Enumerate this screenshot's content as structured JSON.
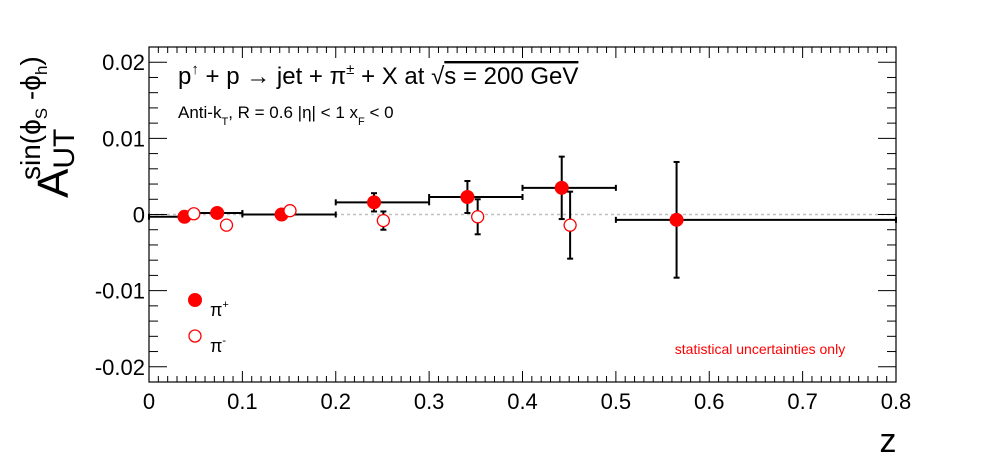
{
  "chart_data": {
    "type": "scatter",
    "title_main": "p↑ + p → jet + π± + X at √s = 200 GeV",
    "title_parts": {
      "p1": "p",
      "arrow_up": "↑",
      "mid": " + p ",
      "rarrow": "→",
      "jet": " jet + ",
      "pi": "π",
      "pm": "±",
      "tail": " + X at ",
      "sqrt": "√",
      "energy": "s = 200 GeV"
    },
    "subtitle_parts": {
      "antikt": "Anti-k",
      "T": "T",
      "rpar": ", R = 0.6   |η| < 1   x",
      "F": "F",
      "lt": " < 0"
    },
    "ylabel": {
      "A": "A",
      "UT": "UT",
      "sup": "sin(ϕ",
      "S": "S",
      "dash": " -ϕ",
      "h": "h",
      "close": ")"
    },
    "xlabel": "z",
    "xlim": [
      0,
      0.8
    ],
    "ylim": [
      -0.022,
      0.022
    ],
    "x_ticks": [
      "0",
      "0.1",
      "0.2",
      "0.3",
      "0.4",
      "0.5",
      "0.6",
      "0.7",
      "0.8"
    ],
    "y_ticks": [
      "-0.02",
      "-0.01",
      "0",
      "0.01",
      "0.02"
    ],
    "annotation": "statistical uncertainties only",
    "legend": [
      {
        "label_base": "π",
        "label_sup": "+",
        "marker": "filled"
      },
      {
        "label_base": "π",
        "label_sup": "-",
        "marker": "open"
      }
    ],
    "series": [
      {
        "name": "π+",
        "marker": "filled",
        "color": "#ff0000",
        "points": [
          {
            "x": 0.038,
            "y": -0.0003,
            "xlo": 0.0,
            "xhi": 0.05,
            "yerr": 0.0007
          },
          {
            "x": 0.073,
            "y": 0.0002,
            "xlo": 0.05,
            "xhi": 0.1,
            "yerr": 0.0004
          },
          {
            "x": 0.142,
            "y": 0.0,
            "xlo": 0.1,
            "xhi": 0.2,
            "yerr": 0.0005
          },
          {
            "x": 0.241,
            "y": 0.0016,
            "xlo": 0.2,
            "xhi": 0.3,
            "yerr": 0.0012
          },
          {
            "x": 0.341,
            "y": 0.0023,
            "xlo": 0.3,
            "xhi": 0.4,
            "yerr": 0.0021
          },
          {
            "x": 0.442,
            "y": 0.0035,
            "xlo": 0.4,
            "xhi": 0.5,
            "yerr": 0.0041
          },
          {
            "x": 0.565,
            "y": -0.0007,
            "xlo": 0.5,
            "xhi": 0.8,
            "yerr": 0.0076
          }
        ]
      },
      {
        "name": "π-",
        "marker": "open",
        "color": "#ff0000",
        "points": [
          {
            "x": 0.048,
            "y": 0.0001,
            "yerr": 0.0006
          },
          {
            "x": 0.083,
            "y": -0.0014,
            "yerr": 0.0
          },
          {
            "x": 0.151,
            "y": 0.0005,
            "yerr": 0.0
          },
          {
            "x": 0.251,
            "y": -0.0008,
            "yerr": 0.0012
          },
          {
            "x": 0.352,
            "y": -0.0003,
            "yerr": 0.0023
          },
          {
            "x": 0.451,
            "y": -0.0014,
            "yerr": 0.0044
          }
        ]
      }
    ],
    "zero_line": {
      "y": 0,
      "style": "dotted",
      "color": "#c0c0c0"
    },
    "annotation_color": "#ff0000"
  }
}
